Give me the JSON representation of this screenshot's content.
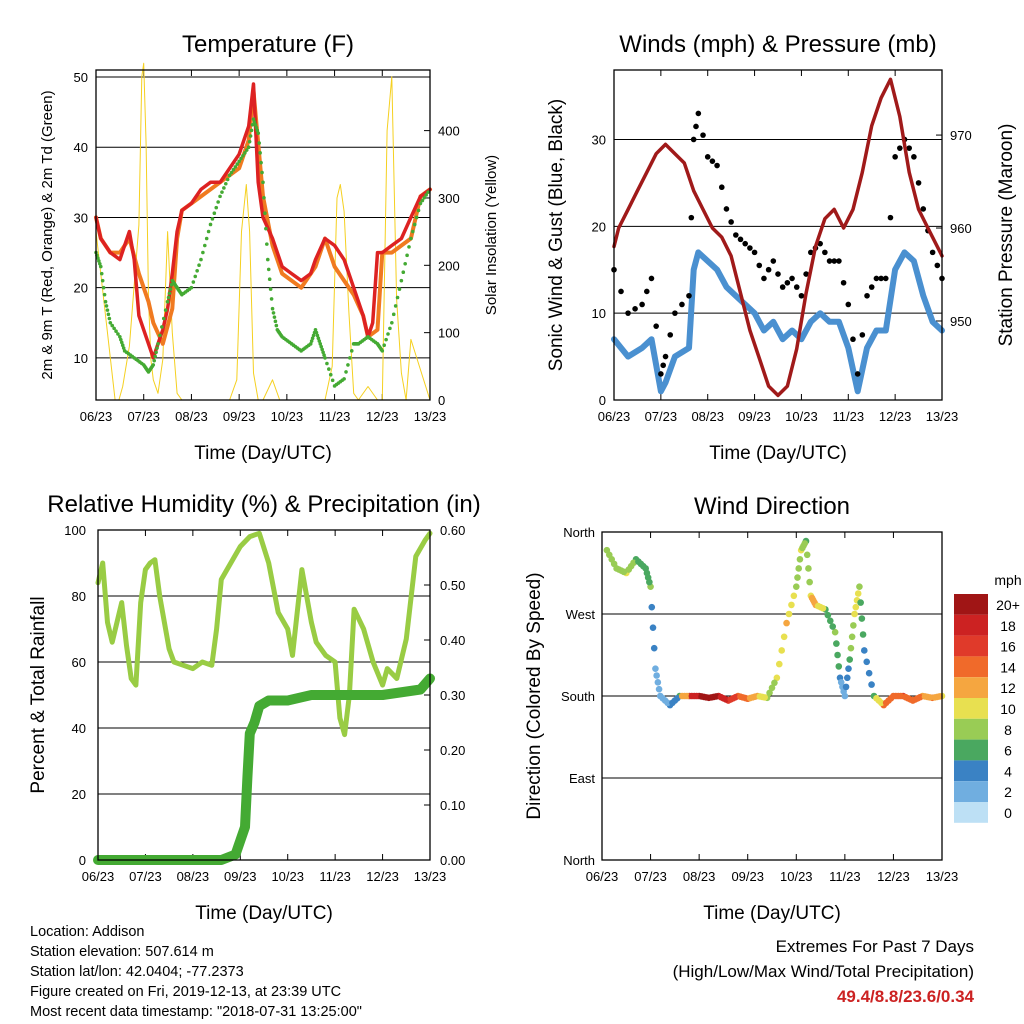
{
  "chart_data": [
    {
      "id": "temperature",
      "type": "line",
      "title": "Temperature (F)",
      "xlabel": "Time (Day/UTC)",
      "ylabel": "2m & 9m T (Red, Orange) & 2m Td (Green)",
      "y2label": "Solar Insolation (Yellow)",
      "x_ticks": [
        "06/23",
        "07/23",
        "08/23",
        "09/23",
        "10/23",
        "11/23",
        "12/23",
        "13/23"
      ],
      "ylim": [
        4,
        51
      ],
      "y_ticks": [
        10,
        20,
        30,
        40,
        50
      ],
      "y2lim": [
        0,
        490
      ],
      "y2_ticks": [
        0,
        100,
        200,
        300,
        400
      ],
      "grid": true,
      "series": [
        {
          "key": "solar",
          "color": "#f5d020",
          "axis": "y2",
          "x": [
            0,
            0.4,
            0.48,
            0.56,
            0.7,
            0.9,
            0.96,
            1,
            1.05,
            1.1,
            1.15,
            1.2,
            1.3,
            1.4,
            1.5,
            1.6,
            1.7,
            1.8,
            2,
            2.8,
            2.95,
            3.05,
            3.15,
            3.22,
            3.3,
            3.4,
            3.5,
            3.7,
            3.85,
            4.8,
            4.95,
            5.05,
            5.12,
            5.2,
            5.3,
            5.4,
            5.5,
            5.7,
            5.9,
            6,
            6.1,
            6.2,
            6.3,
            6.4,
            6.5,
            6.6,
            7
          ],
          "y": [
            250,
            0,
            0,
            20,
            80,
            260,
            480,
            500,
            380,
            150,
            60,
            30,
            10,
            60,
            250,
            100,
            10,
            0,
            0,
            0,
            30,
            250,
            320,
            250,
            40,
            0,
            0,
            30,
            0,
            0,
            50,
            300,
            320,
            280,
            130,
            10,
            0,
            20,
            0,
            0,
            400,
            480,
            150,
            40,
            0,
            90,
            0
          ]
        },
        {
          "key": "t9m",
          "color": "#f07a20",
          "axis": "y",
          "x": [
            0,
            0.1,
            0.3,
            0.5,
            0.7,
            0.9,
            1,
            1.1,
            1.2,
            1.4,
            1.6,
            1.7,
            1.8,
            2.2,
            2.6,
            3,
            3.2,
            3.3,
            3.5,
            3.7,
            3.9,
            4.3,
            4.6,
            4.8,
            5,
            5.4,
            5.6,
            5.7,
            5.9,
            6,
            6.2,
            6.4,
            6.6,
            6.8,
            7
          ],
          "y": [
            30,
            27,
            25,
            25,
            27,
            22,
            20,
            18,
            15,
            12,
            17,
            27,
            31,
            33,
            35,
            37,
            41,
            48,
            33,
            26,
            22,
            20,
            23,
            27,
            23,
            19,
            16,
            13,
            14,
            25,
            25,
            26,
            27,
            33,
            34
          ]
        },
        {
          "key": "t2m",
          "color": "#dd2222",
          "axis": "y",
          "x": [
            0,
            0.1,
            0.3,
            0.5,
            0.6,
            0.7,
            0.8,
            0.9,
            1,
            1.1,
            1.2,
            1.3,
            1.4,
            1.5,
            1.6,
            1.7,
            1.8,
            2,
            2.2,
            2.4,
            2.6,
            2.8,
            3,
            3.1,
            3.2,
            3.3,
            3.4,
            3.5,
            3.7,
            3.9,
            4.1,
            4.3,
            4.5,
            4.6,
            4.8,
            5,
            5.2,
            5.4,
            5.6,
            5.7,
            5.8,
            5.9,
            6,
            6.2,
            6.4,
            6.6,
            6.8,
            7
          ],
          "y": [
            30,
            27,
            25,
            24,
            26,
            28,
            24,
            16,
            14,
            12,
            10,
            12,
            14,
            17,
            22,
            28,
            31,
            32,
            34,
            35,
            35,
            37,
            39,
            41,
            43,
            49,
            35,
            30,
            27,
            23,
            22,
            21,
            22,
            24,
            27,
            26,
            24,
            20,
            16,
            13,
            15,
            25,
            25,
            26,
            27,
            30,
            33,
            34
          ]
        },
        {
          "key": "td2m",
          "color": "#44aa33",
          "axis": "y",
          "x": [
            0,
            0.1,
            0.2,
            0.3,
            0.5,
            0.6,
            0.8,
            1,
            1.1,
            1.2,
            1.3,
            1.5,
            1.6,
            1.7,
            1.8,
            2,
            2.2,
            2.4,
            2.6,
            2.8,
            3,
            3.2,
            3.3,
            3.4,
            3.5,
            3.6,
            3.7,
            3.8,
            3.9,
            4.1,
            4.3,
            4.5,
            4.6,
            4.7,
            4.8,
            5,
            5.2,
            5.4,
            5.5,
            5.7,
            5.9,
            6,
            6.2,
            6.4,
            6.6,
            6.8,
            7
          ],
          "y": [
            25,
            23,
            18,
            15,
            13,
            11,
            10,
            9,
            8,
            9,
            12,
            18,
            21,
            20,
            19,
            20,
            24,
            29,
            33,
            36,
            38,
            40,
            44,
            42,
            35,
            24,
            17,
            14,
            13,
            12,
            11,
            12,
            14,
            12,
            10,
            6,
            7,
            12,
            12,
            13,
            12,
            11,
            15,
            21,
            27,
            32,
            34
          ]
        }
      ]
    },
    {
      "id": "winds",
      "type": "scatter",
      "title": "Winds (mph) & Pressure (mb)",
      "xlabel": "Time (Day/UTC)",
      "ylabel": "Sonic Wind & Gust (Blue, Black)",
      "y2label": "Station Pressure (Maroon)",
      "x_ticks": [
        "06/23",
        "07/23",
        "08/23",
        "09/23",
        "10/23",
        "11/23",
        "12/23",
        "13/23"
      ],
      "ylim": [
        0,
        38
      ],
      "y_ticks": [
        0,
        10,
        20,
        30
      ],
      "y2lim": [
        941.5,
        977
      ],
      "y2_ticks": [
        950,
        960,
        970
      ],
      "grid": true,
      "series": [
        {
          "key": "gust",
          "color": "#000000",
          "x": [
            0,
            0.3,
            0.6,
            0.8,
            1,
            1.1,
            1.3,
            1.6,
            1.7,
            1.8,
            2,
            2.2,
            2.4,
            2.6,
            2.8,
            3,
            3.2,
            3.4,
            3.6,
            3.8,
            4,
            4.2,
            4.4,
            4.6,
            4.8,
            5,
            5.2,
            5.4,
            5.6,
            5.8,
            6,
            6.2,
            6.4,
            6.6,
            6.8,
            7
          ],
          "y": [
            15,
            10,
            11,
            14,
            3,
            5,
            10,
            12,
            30,
            33,
            28,
            27,
            22,
            19,
            18,
            17,
            14,
            16,
            13,
            14,
            12,
            17,
            18,
            16,
            16,
            11,
            3,
            12,
            14,
            14,
            28,
            30,
            28,
            22,
            17,
            14
          ]
        },
        {
          "key": "wind",
          "color": "#4a90d0",
          "x": [
            0,
            0.3,
            0.6,
            0.8,
            1,
            1.1,
            1.3,
            1.6,
            1.7,
            1.8,
            2,
            2.2,
            2.4,
            2.6,
            2.8,
            3,
            3.2,
            3.4,
            3.6,
            3.8,
            4,
            4.2,
            4.4,
            4.6,
            4.8,
            5,
            5.2,
            5.4,
            5.6,
            5.8,
            6,
            6.2,
            6.4,
            6.6,
            6.8,
            7
          ],
          "y": [
            7,
            5,
            6,
            7,
            1,
            2,
            5,
            6,
            15,
            17,
            16,
            15,
            13,
            12,
            11,
            10,
            8,
            9,
            7,
            8,
            7,
            9,
            10,
            9,
            9,
            6,
            1,
            6,
            8,
            8,
            15,
            17,
            16,
            12,
            9,
            8
          ]
        },
        {
          "key": "pressure",
          "color": "#a01a1a",
          "axis": "y2",
          "x": [
            0,
            0.1,
            0.3,
            0.5,
            0.7,
            0.9,
            1.1,
            1.3,
            1.5,
            1.7,
            1.9,
            2.1,
            2.3,
            2.5,
            2.7,
            2.9,
            3.1,
            3.3,
            3.5,
            3.7,
            3.9,
            4.1,
            4.3,
            4.5,
            4.7,
            4.9,
            5.1,
            5.3,
            5.5,
            5.7,
            5.9,
            6.1,
            6.3,
            6.5,
            6.7,
            6.9,
            7
          ],
          "y": [
            958,
            960,
            962,
            964,
            966,
            968,
            969,
            968,
            967,
            964,
            962,
            960,
            959,
            957,
            953,
            949,
            946,
            943,
            942,
            943,
            947,
            953,
            958,
            961,
            962,
            960,
            962,
            966,
            971,
            974,
            976,
            972,
            966,
            962,
            960,
            958,
            957
          ]
        }
      ]
    },
    {
      "id": "humidity",
      "type": "line",
      "title": "Relative Humidity (%) & Precipitation (in)",
      "xlabel": "Time (Day/UTC)",
      "ylabel": "Percent & Total Rainfall",
      "x_ticks": [
        "06/23",
        "07/23",
        "08/23",
        "09/23",
        "10/23",
        "11/23",
        "12/23",
        "13/23"
      ],
      "ylim": [
        0,
        100
      ],
      "y_ticks": [
        0,
        20,
        40,
        60,
        80,
        100
      ],
      "y2lim": [
        0,
        0.6
      ],
      "y2_ticks": [
        "0.00",
        "0.10",
        "0.20",
        "0.30",
        "0.40",
        "0.50",
        "0.60"
      ],
      "grid": true,
      "series": [
        {
          "key": "rh",
          "color": "#99cc44",
          "axis": "y",
          "x": [
            0,
            0.1,
            0.2,
            0.3,
            0.5,
            0.6,
            0.7,
            0.8,
            0.9,
            1,
            1.1,
            1.2,
            1.3,
            1.4,
            1.5,
            1.6,
            1.8,
            2,
            2.2,
            2.4,
            2.5,
            2.6,
            2.8,
            3,
            3.2,
            3.4,
            3.6,
            3.8,
            4,
            4.1,
            4.3,
            4.5,
            4.6,
            4.8,
            5,
            5.1,
            5.2,
            5.3,
            5.4,
            5.6,
            5.8,
            6,
            6.1,
            6.3,
            6.5,
            6.7,
            6.9,
            7
          ],
          "y": [
            84,
            90,
            72,
            66,
            78,
            65,
            55,
            53,
            78,
            88,
            90,
            91,
            80,
            72,
            64,
            60,
            59,
            58,
            60,
            59,
            70,
            85,
            90,
            95,
            98,
            99,
            90,
            75,
            70,
            62,
            88,
            72,
            66,
            62,
            60,
            43,
            38,
            50,
            76,
            70,
            60,
            53,
            58,
            55,
            67,
            92,
            97,
            99
          ]
        },
        {
          "key": "precip",
          "color": "#44aa33",
          "axis": "y2",
          "x": [
            0,
            1,
            2,
            2.6,
            2.9,
            3.1,
            3.15,
            3.2,
            3.3,
            3.4,
            3.6,
            4,
            4.5,
            5,
            6,
            6.8,
            7
          ],
          "y": [
            0,
            0,
            0,
            0,
            0.01,
            0.06,
            0.15,
            0.23,
            0.25,
            0.28,
            0.29,
            0.29,
            0.3,
            0.3,
            0.3,
            0.31,
            0.33
          ]
        }
      ]
    },
    {
      "id": "direction",
      "type": "scatter",
      "title": "Wind Direction",
      "xlabel": "Time (Day/UTC)",
      "ylabel": "Direction (Colored By Speed)",
      "x_ticks": [
        "06/23",
        "07/23",
        "08/23",
        "09/23",
        "10/23",
        "11/23",
        "12/23",
        "13/23"
      ],
      "y_ticks": [
        "North",
        "West",
        "South",
        "East",
        "North"
      ],
      "ylim": [
        0,
        360
      ],
      "grid": true,
      "legend": {
        "title": "mph",
        "labels": [
          "20+",
          "18",
          "16",
          "14",
          "12",
          "10",
          "8",
          "6",
          "4",
          "2",
          "0"
        ],
        "colors": [
          "#a01515",
          "#cc2222",
          "#e03a2a",
          "#f06a2a",
          "#f5a640",
          "#e8e050",
          "#99cc55",
          "#4aa860",
          "#3a82c4",
          "#70aee0",
          "#bde0f5"
        ]
      },
      "x": [
        0.1,
        0.3,
        0.5,
        0.7,
        0.9,
        1,
        1.1,
        1.2,
        1.4,
        1.6,
        1.8,
        2,
        2.2,
        2.4,
        2.6,
        2.8,
        3,
        3.2,
        3.4,
        3.6,
        3.8,
        4,
        4.1,
        4.2,
        4.3,
        4.4,
        4.6,
        4.8,
        4.9,
        5,
        5.1,
        5.2,
        5.3,
        5.4,
        5.6,
        5.8,
        6,
        6.2,
        6.4,
        6.6,
        6.8,
        7
      ],
      "y": [
        340,
        320,
        315,
        330,
        320,
        300,
        210,
        180,
        170,
        180,
        180,
        180,
        178,
        180,
        175,
        180,
        177,
        180,
        178,
        200,
        260,
        300,
        340,
        350,
        290,
        280,
        275,
        250,
        200,
        180,
        220,
        270,
        300,
        230,
        180,
        170,
        180,
        180,
        175,
        180,
        178,
        180
      ],
      "speed": [
        8,
        7,
        9,
        6,
        6,
        7,
        1,
        1,
        3,
        5,
        18,
        19,
        20,
        18,
        16,
        14,
        13,
        12,
        8,
        9,
        11,
        8,
        9,
        5,
        10,
        12,
        6,
        7,
        3,
        2,
        6,
        10,
        8,
        3,
        5,
        13,
        14,
        15,
        14,
        12,
        13,
        10
      ]
    }
  ],
  "info": {
    "location": "Location: Addison",
    "elevation": "Station elevation: 507.614 m",
    "latlon": "Station lat/lon: 42.0404; -77.2373",
    "created": "Figure created on Fri, 2019-12-13, at 23:39 UTC",
    "recent": "Most recent data timestamp: \"2018-07-31 13:25:00\""
  },
  "extremes": {
    "line1": "Extremes For Past 7 Days",
    "line2": "(High/Low/Max Wind/Total Precipitation)",
    "values": "49.4/8.8/23.6/0.34"
  }
}
